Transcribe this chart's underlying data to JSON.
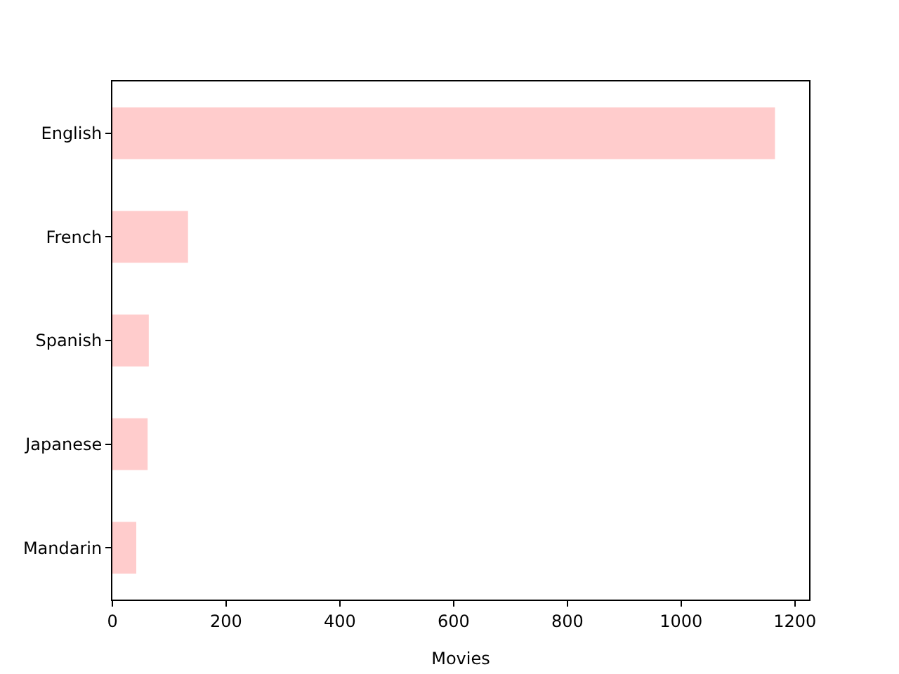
{
  "chart_data": {
    "type": "bar",
    "orientation": "horizontal",
    "xlabel": "Movies",
    "categories": [
      "English",
      "French",
      "Spanish",
      "Japanese",
      "Mandarin"
    ],
    "values": [
      1165,
      133,
      64,
      62,
      42
    ],
    "color": "#ffcccc",
    "xlim": [
      0,
      1225
    ],
    "xticks": [
      0,
      200,
      400,
      600,
      800,
      1000,
      1200
    ],
    "grid": false
  }
}
